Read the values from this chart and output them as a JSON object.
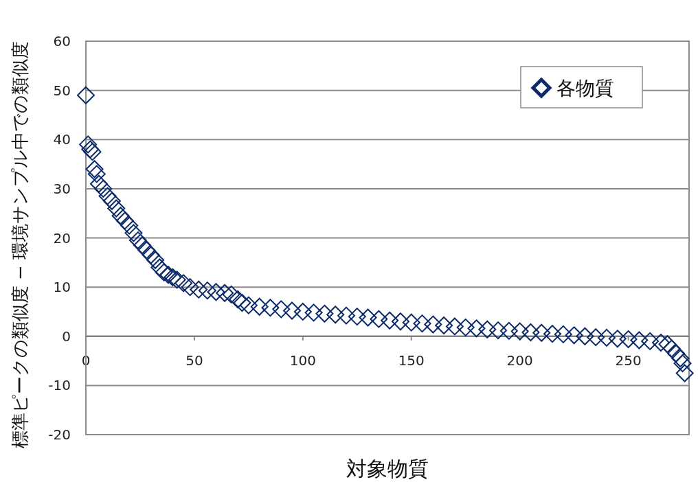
{
  "chart_data": {
    "type": "scatter",
    "xlabel": "対象物質",
    "ylabel": "標準ピークの類似度 − 環境サンプル中での類似度",
    "xlim": [
      0,
      278
    ],
    "xticks": [
      0,
      50,
      100,
      150,
      200,
      250
    ],
    "ylim": [
      -20,
      60
    ],
    "yticks": [
      -20,
      -10,
      0,
      10,
      20,
      30,
      40,
      50,
      60
    ],
    "grid": "y",
    "legend": "top right",
    "marker": "diamond",
    "series": [
      {
        "name": "各物質",
        "color": "#0c2a6a",
        "x": [
          0,
          1,
          2,
          3,
          4,
          5,
          6,
          8,
          10,
          12,
          14,
          16,
          18,
          20,
          22,
          24,
          26,
          28,
          30,
          32,
          34,
          36,
          38,
          40,
          42,
          45,
          48,
          52,
          56,
          60,
          64,
          67,
          70,
          72,
          75,
          80,
          85,
          90,
          95,
          100,
          105,
          110,
          115,
          120,
          125,
          130,
          135,
          140,
          145,
          150,
          155,
          160,
          165,
          170,
          175,
          180,
          185,
          190,
          195,
          200,
          205,
          210,
          215,
          220,
          225,
          230,
          235,
          240,
          245,
          250,
          255,
          260,
          265,
          268,
          270,
          272,
          274,
          275,
          276
        ],
        "values": [
          49,
          39,
          38,
          37.5,
          34,
          33,
          31,
          30,
          28.5,
          27.5,
          26,
          24.5,
          23.5,
          22.5,
          21,
          19.5,
          18.5,
          17.5,
          16.5,
          15.5,
          14,
          13,
          12.5,
          12,
          11.5,
          10.8,
          10,
          9.5,
          9.3,
          9,
          8.8,
          8.5,
          7.5,
          6.8,
          6.3,
          6,
          5.8,
          5.5,
          5.2,
          5,
          4.8,
          4.6,
          4.4,
          4.2,
          4,
          3.8,
          3.5,
          3.2,
          3,
          2.8,
          2.6,
          2.4,
          2.2,
          2,
          1.8,
          1.6,
          1.4,
          1.2,
          1.1,
          1,
          0.8,
          0.7,
          0.5,
          0.4,
          0.2,
          0,
          -0.2,
          -0.3,
          -0.5,
          -0.6,
          -0.8,
          -1,
          -1.3,
          -1.6,
          -2.5,
          -3.5,
          -4.5,
          -5.5,
          -7.5
        ]
      }
    ]
  }
}
